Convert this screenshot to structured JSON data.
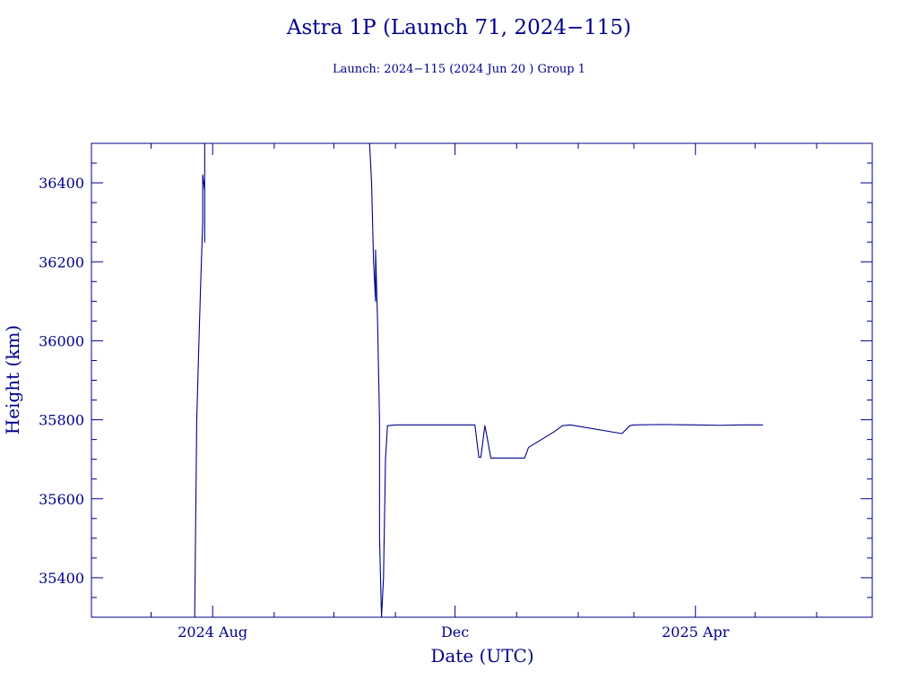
{
  "colors": {
    "ink": "#00008b",
    "background": "#ffffff"
  },
  "chart_data": {
    "type": "line",
    "title": "Astra 1P (Launch 71, 2024−115)",
    "subtitle": "Launch: 2024−115  (2024 Jun 20 )  Group 1",
    "xlabel": "Date (UTC)",
    "ylabel": "Height (km)",
    "xlim": [
      "2024-06-01",
      "2025-06-29"
    ],
    "ylim": [
      35300,
      36500
    ],
    "grid": false,
    "x_ticks": [
      {
        "date": "2024-08-01",
        "label": "2024 Aug"
      },
      {
        "date": "2024-12-01",
        "label": "Dec"
      },
      {
        "date": "2025-04-01",
        "label": "2025 Apr"
      }
    ],
    "y_ticks": [
      35400,
      35600,
      35800,
      36000,
      36200,
      36400
    ],
    "series": [
      {
        "values": [
          [
            "2024-07-23",
            35300
          ],
          [
            "2024-07-23",
            35320
          ],
          [
            "2024-07-24",
            35800
          ],
          [
            "2024-07-25",
            35980
          ],
          [
            "2024-07-26",
            36150
          ],
          [
            "2024-07-27",
            36300
          ],
          [
            "2024-07-27",
            36420
          ],
          [
            "2024-07-28",
            36380
          ],
          [
            "2024-07-28",
            36250
          ],
          [
            "2024-07-28",
            36400
          ],
          [
            "2024-07-28",
            36500
          ]
        ]
      },
      {
        "values": [
          [
            "2024-10-19",
            36500
          ],
          [
            "2024-10-20",
            36400
          ],
          [
            "2024-10-21",
            36200
          ],
          [
            "2024-10-22",
            36100
          ],
          [
            "2024-10-22",
            36230
          ],
          [
            "2024-10-23",
            36050
          ],
          [
            "2024-10-24",
            35800
          ],
          [
            "2024-10-24",
            35500
          ],
          [
            "2024-10-25",
            35300
          ],
          [
            "2024-10-26",
            35400
          ],
          [
            "2024-10-27",
            35700
          ],
          [
            "2024-10-28",
            35785
          ],
          [
            "2024-11-01",
            35787
          ],
          [
            "2024-11-15",
            35787
          ],
          [
            "2024-12-01",
            35787
          ],
          [
            "2024-12-11",
            35787
          ],
          [
            "2024-12-13",
            35705
          ],
          [
            "2024-12-14",
            35705
          ],
          [
            "2024-12-16",
            35785
          ],
          [
            "2024-12-17",
            35760
          ],
          [
            "2024-12-19",
            35703
          ],
          [
            "2024-12-28",
            35703
          ],
          [
            "2025-01-05",
            35703
          ],
          [
            "2025-01-07",
            35730
          ],
          [
            "2025-01-20",
            35770
          ],
          [
            "2025-01-24",
            35785
          ],
          [
            "2025-01-28",
            35787
          ],
          [
            "2025-02-23",
            35765
          ],
          [
            "2025-02-27",
            35785
          ],
          [
            "2025-03-01",
            35787
          ],
          [
            "2025-03-15",
            35788
          ],
          [
            "2025-04-01",
            35787
          ],
          [
            "2025-04-13",
            35786
          ],
          [
            "2025-04-25",
            35787
          ],
          [
            "2025-05-05",
            35787
          ]
        ]
      }
    ]
  }
}
